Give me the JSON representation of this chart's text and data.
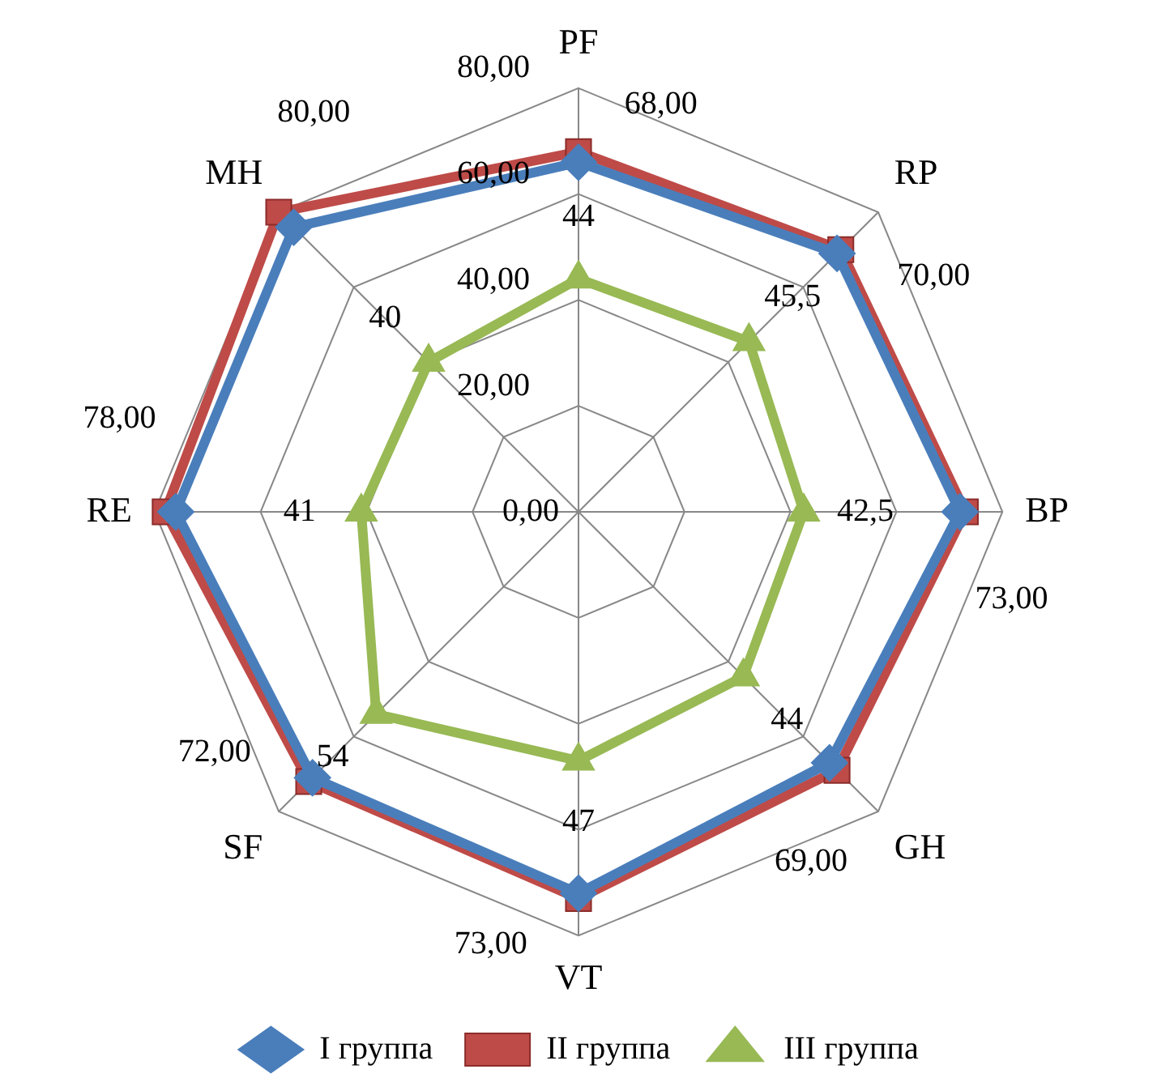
{
  "chart_data": {
    "type": "radar",
    "categories": [
      "PF",
      "RP",
      "BP",
      "GH",
      "VT",
      "SF",
      "RE",
      "MH"
    ],
    "series": [
      {
        "name": "I группа",
        "color": "#4a7ebb",
        "marker": "diamond",
        "values": [
          66,
          69,
          72,
          67,
          72,
          71,
          76,
          76
        ]
      },
      {
        "name": "II группа",
        "color": "#be4b48",
        "marker": "square",
        "values": [
          68,
          70,
          73,
          69,
          73,
          72,
          78,
          80
        ],
        "value_labels": [
          "68,00",
          "70,00",
          "73,00",
          "69,00",
          "73,00",
          "72,00",
          "78,00",
          "80,00"
        ]
      },
      {
        "name": "III группа",
        "color": "#98b954",
        "marker": "triangle",
        "values": [
          44,
          45.5,
          42.5,
          44,
          47,
          54,
          41,
          40
        ],
        "value_labels": [
          "44",
          "45,5",
          "42,5",
          "44",
          "47",
          "54",
          "41",
          "40"
        ]
      }
    ],
    "ylim": [
      0,
      80
    ],
    "yticks": [
      {
        "value": 0,
        "label": "0,00"
      },
      {
        "value": 20,
        "label": "20,00"
      },
      {
        "value": 40,
        "label": "40,00"
      },
      {
        "value": 60,
        "label": "60,00"
      },
      {
        "value": 80,
        "label": "80,00"
      }
    ],
    "grid": true,
    "legend": "bottom"
  }
}
